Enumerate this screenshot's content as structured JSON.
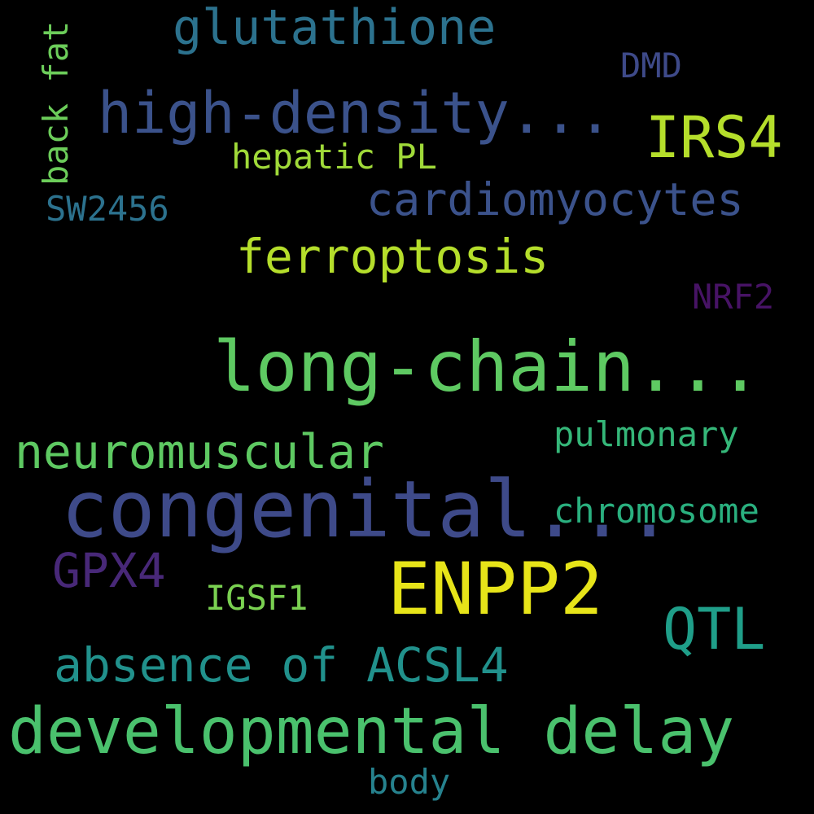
{
  "background": "#000000",
  "words": [
    {
      "id": "congenital",
      "text": "congenital...",
      "color": "#3e4a89"
    },
    {
      "id": "long-chain",
      "text": "long-chain...",
      "color": "#5ec962"
    },
    {
      "id": "developmental-delay",
      "text": "developmental delay",
      "color": "#4ac16d"
    },
    {
      "id": "enpp2",
      "text": "ENPP2",
      "color": "#e7e419"
    },
    {
      "id": "high-density",
      "text": "high-density...",
      "color": "#3b528b"
    },
    {
      "id": "irs4",
      "text": "IRS4",
      "color": "#b5de2b"
    },
    {
      "id": "glutathione",
      "text": "glutathione",
      "color": "#2c728e"
    },
    {
      "id": "cardiomyocytes",
      "text": "cardiomyocytes",
      "color": "#3b528b"
    },
    {
      "id": "ferroptosis",
      "text": "ferroptosis",
      "color": "#b5de2b"
    },
    {
      "id": "neuromuscular",
      "text": "neuromuscular",
      "color": "#5ec962"
    },
    {
      "id": "absence-of-acsl4",
      "text": "absence of ACSL4",
      "color": "#21918c"
    },
    {
      "id": "qtl",
      "text": "QTL",
      "color": "#1f9e89"
    },
    {
      "id": "gpx4",
      "text": "GPX4",
      "color": "#482878"
    },
    {
      "id": "chromosome",
      "text": "chromosome",
      "color": "#2ab07f"
    },
    {
      "id": "pulmonary",
      "text": "pulmonary",
      "color": "#35b779"
    },
    {
      "id": "hepatic-pl",
      "text": "hepatic PL",
      "color": "#a0da39"
    },
    {
      "id": "dmd",
      "text": "DMD",
      "color": "#3e4a89"
    },
    {
      "id": "nrf2",
      "text": "NRF2",
      "color": "#471365"
    },
    {
      "id": "sw2456",
      "text": "SW2456",
      "color": "#2c728e"
    },
    {
      "id": "igsf1",
      "text": "IGSF1",
      "color": "#7ad151"
    },
    {
      "id": "body",
      "text": "body",
      "color": "#26828e"
    },
    {
      "id": "back-fat",
      "text": "back fat",
      "color": "#6ccd5a"
    }
  ]
}
